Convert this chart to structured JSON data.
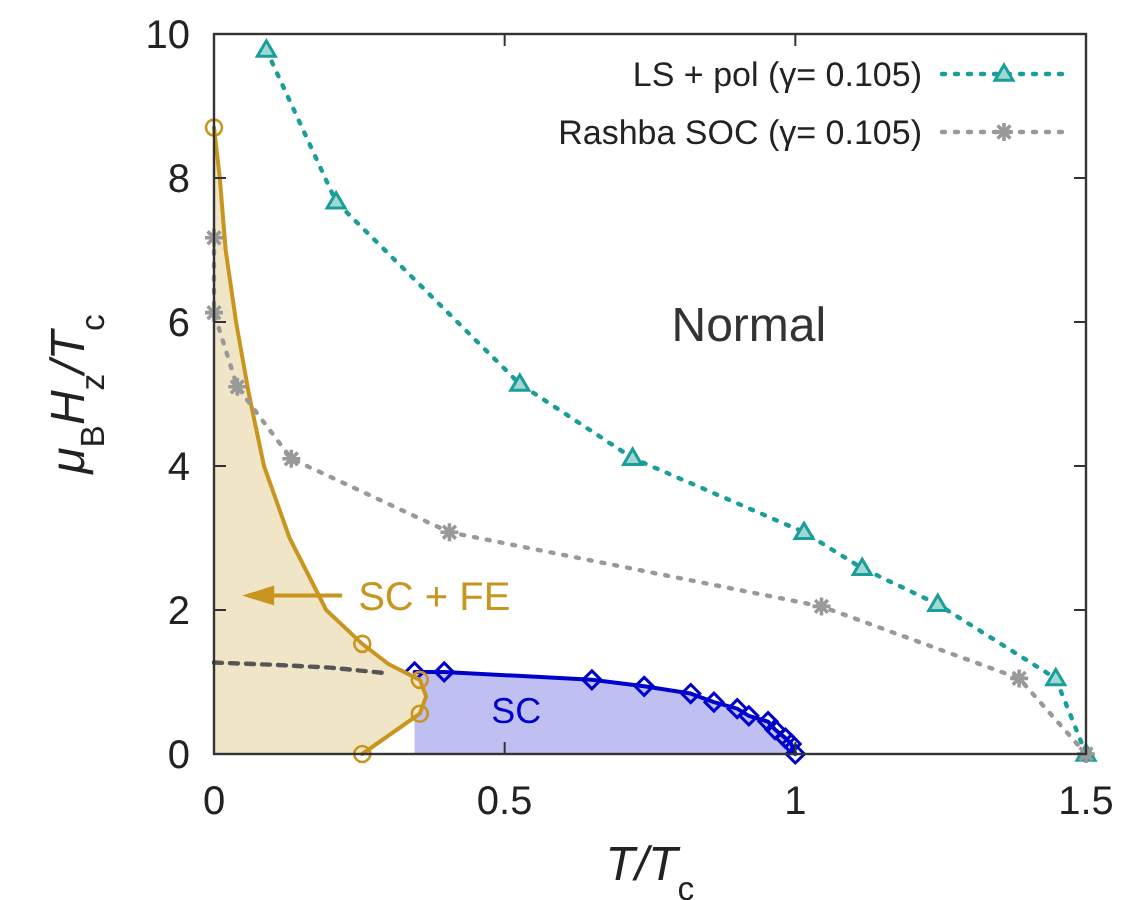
{
  "chart_data": {
    "type": "line",
    "xlabel": "T/T$_{c}$",
    "ylabel": "μ$_{B}$H$_{z}$/T$_{c}$",
    "xlim": [
      0,
      1.5
    ],
    "ylim": [
      0,
      10
    ],
    "xticks": [
      0,
      0.5,
      1,
      1.5
    ],
    "yticks": [
      0,
      2,
      4,
      6,
      8,
      10
    ],
    "grid": false,
    "legend": "top right",
    "annotations": [
      "Normal",
      "SC + FE",
      "SC"
    ],
    "series": [
      {
        "type": "area",
        "color": "#0000cc",
        "marker": "diamond",
        "line_style": "solid",
        "x": [
          0.345,
          0.396,
          0.65,
          0.74,
          0.82,
          0.86,
          0.9,
          0.92,
          0.953,
          0.965,
          0.983,
          0.993,
          1.0
        ],
        "values": [
          1.14,
          1.14,
          1.03,
          0.94,
          0.84,
          0.72,
          0.63,
          0.53,
          0.45,
          0.34,
          0.22,
          0.14,
          0
        ]
      },
      {
        "type": "area",
        "color": "#c8961e",
        "marker": "none",
        "line_style": "solid",
        "x": [
          0,
          0.01,
          0.02,
          0.038,
          0.06,
          0.086,
          0.13,
          0.193,
          0.255,
          0.3,
          0.354,
          0.365,
          0.354,
          0.255
        ],
        "values": [
          8.7,
          8,
          7,
          6,
          5,
          4,
          3,
          2,
          1.53,
          1.25,
          1.03,
          0.8,
          0.56,
          0
        ]
      },
      {
        "type": "scatter",
        "color": "#c8961e",
        "marker": "circle",
        "x": [
          0,
          0.255,
          0.354,
          0.354,
          0.255
        ],
        "values": [
          8.7,
          1.53,
          1.03,
          0.56,
          0
        ]
      },
      {
        "color": "#555555",
        "marker": "none",
        "line_style": "dashed",
        "x": [
          0,
          0.1,
          0.2,
          0.3
        ],
        "values": [
          1.27,
          1.24,
          1.2,
          1.12
        ]
      },
      {
        "name": "LS + pol (γ= 0.105)",
        "color": "#1a9e9a",
        "marker": "triangle",
        "line_style": "dotted",
        "x": [
          0.09,
          0.21,
          0.526,
          0.72,
          1.015,
          1.115,
          1.245,
          1.448,
          1.5
        ],
        "values": [
          9.78,
          7.67,
          5.14,
          4.11,
          3.08,
          2.58,
          2.08,
          1.05,
          0
        ]
      },
      {
        "name": "Rashba SOC (γ= 0.105)",
        "color": "#999999",
        "marker": "cross",
        "line_style": "dotted",
        "x": [
          0,
          0,
          0.04,
          0.133,
          0.405,
          1.045,
          1.385,
          1.5
        ],
        "values": [
          7.17,
          6.13,
          5.1,
          4.1,
          3.08,
          2.05,
          1.05,
          0
        ]
      }
    ]
  }
}
